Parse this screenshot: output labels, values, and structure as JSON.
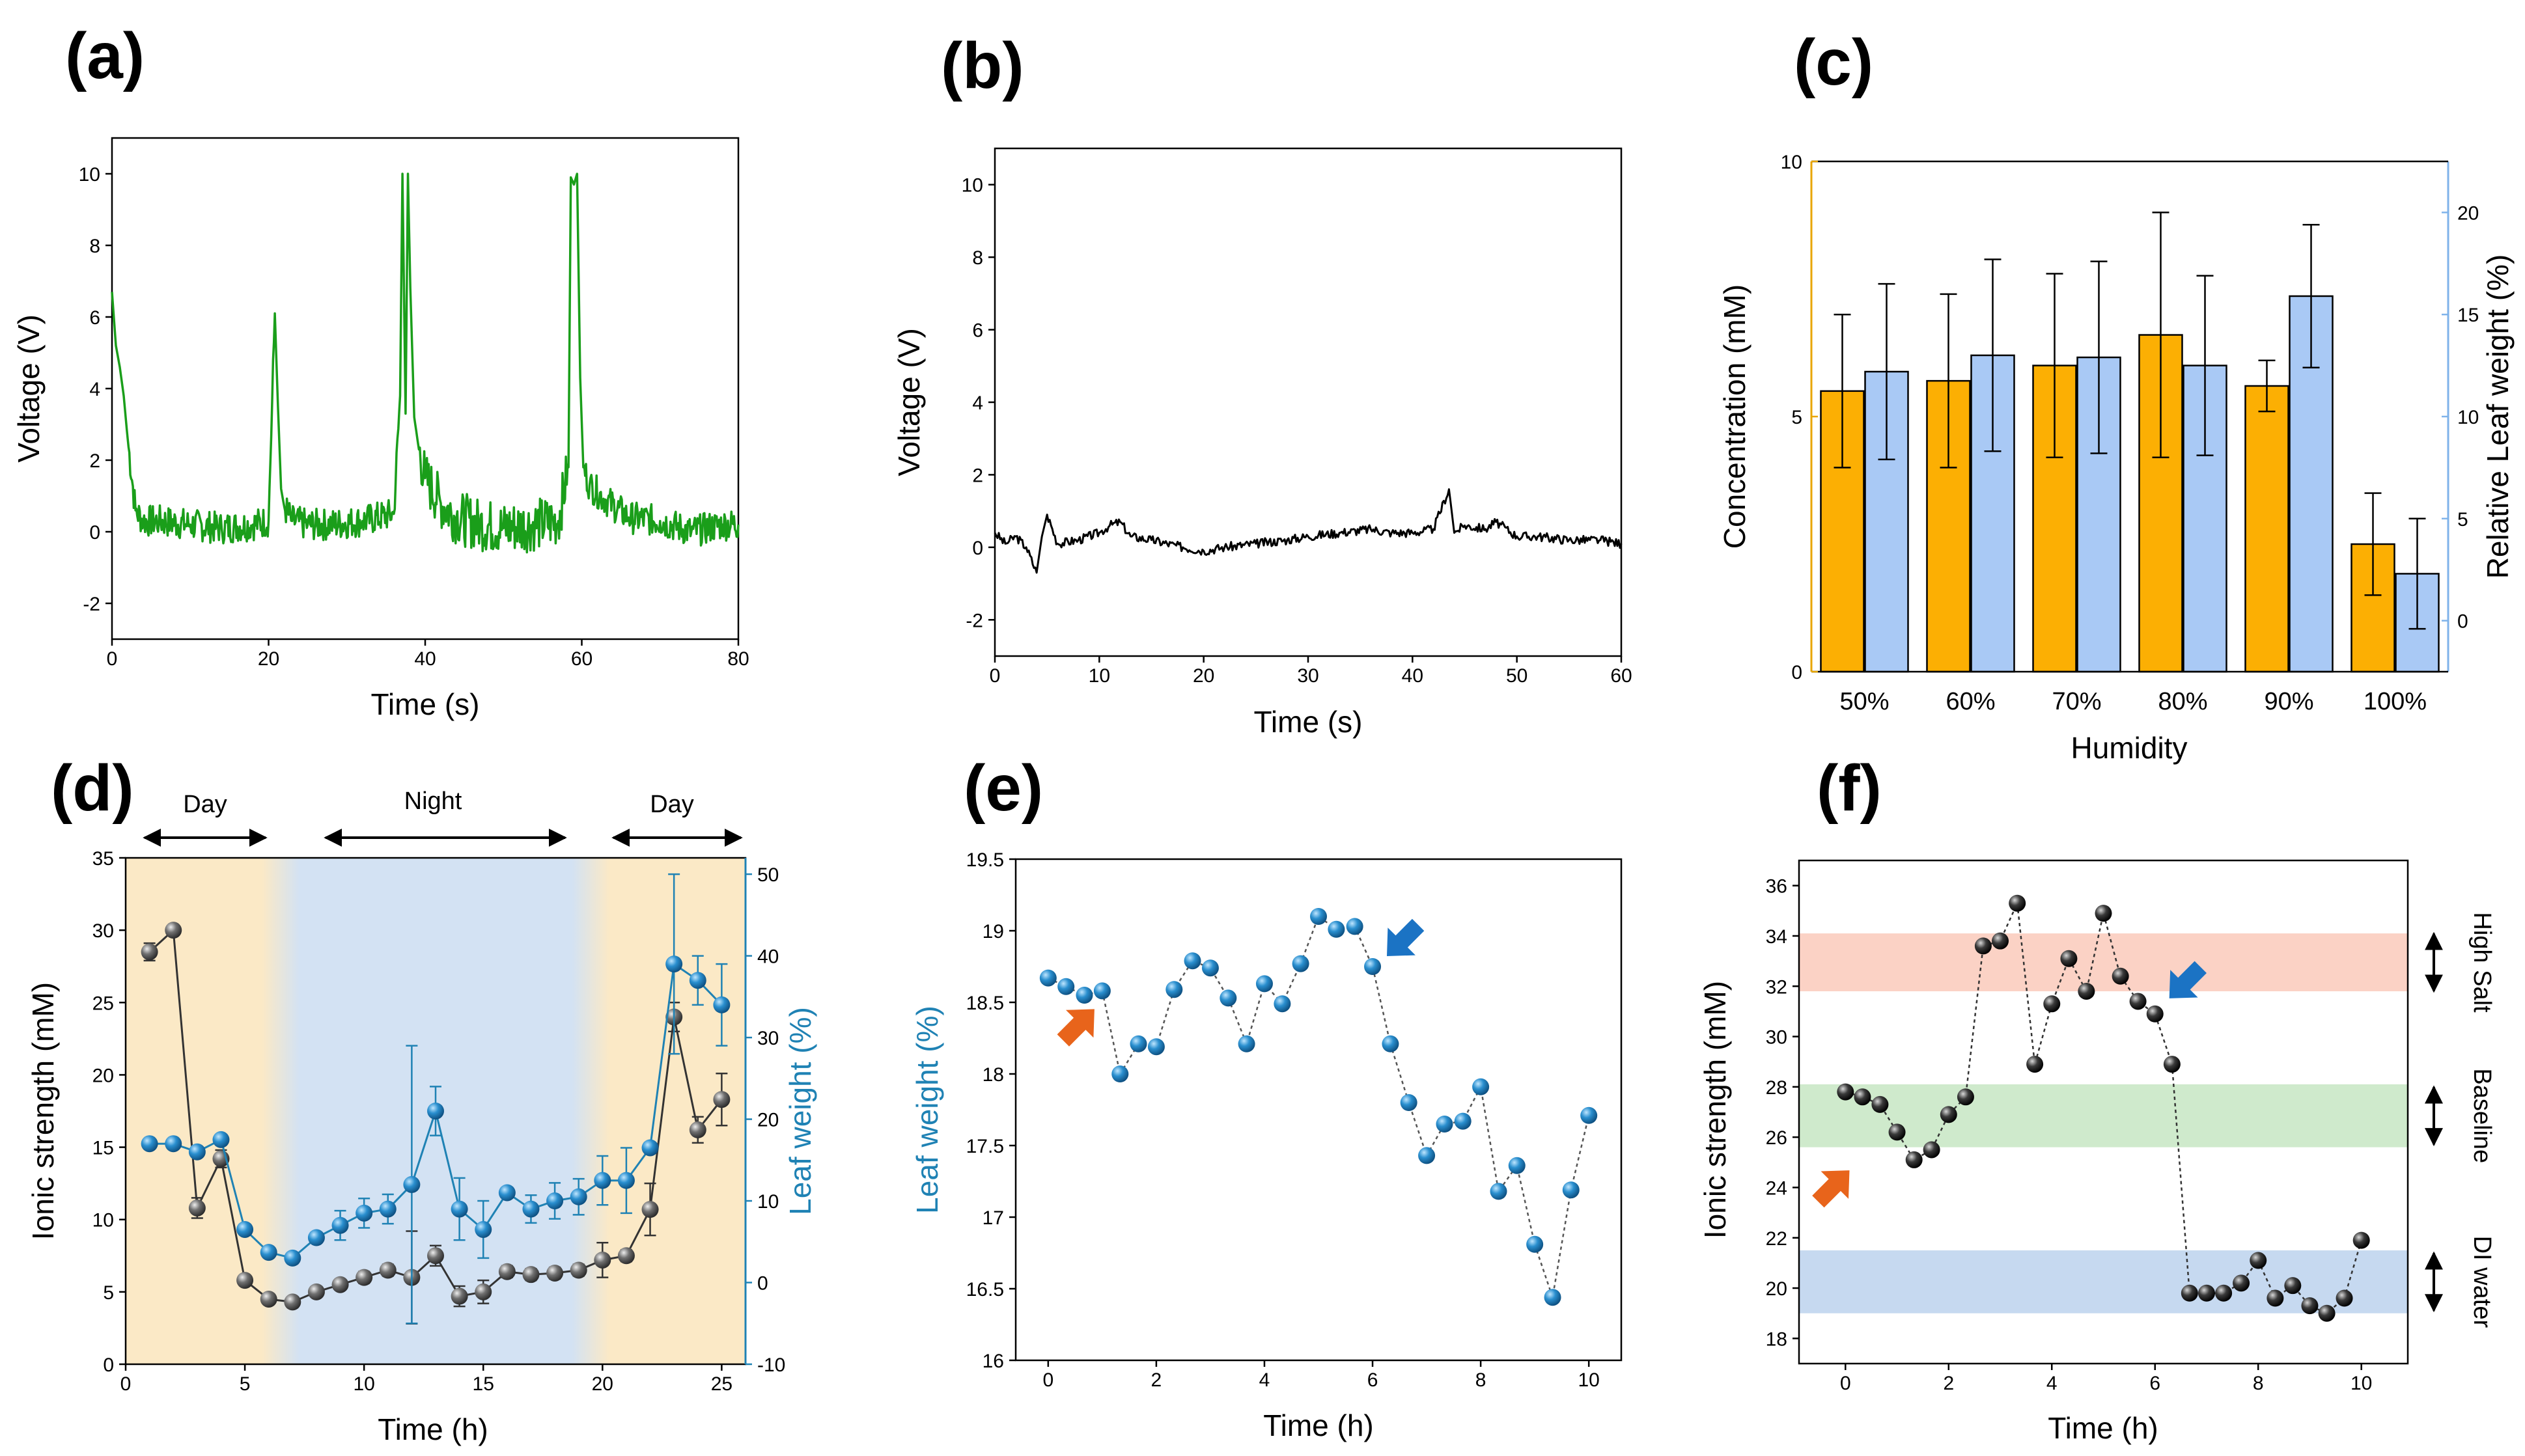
{
  "chart_data": [
    {
      "panel": "(a)",
      "type": "line",
      "xlabel": "Time (s)",
      "ylabel": "Voltage (V)",
      "xlim": [
        0,
        80
      ],
      "ylim": [
        -3,
        11
      ],
      "xticks": [
        0,
        20,
        40,
        60,
        80
      ],
      "yticks": [
        -2,
        0,
        2,
        4,
        6,
        8,
        10
      ],
      "series": [
        {
          "name": "voltage",
          "color": "#1a9e1a",
          "x": [
            0,
            0.5,
            1,
            1.5,
            2,
            3,
            4,
            6,
            10,
            14,
            18,
            20,
            20.8,
            21.2,
            21.6,
            22,
            23,
            25,
            28,
            32,
            36,
            36.8,
            37.1,
            37.5,
            37.8,
            38.1,
            38.6,
            39.2,
            40,
            42,
            44,
            47,
            50,
            54,
            57,
            58.3,
            58.6,
            59,
            59.4,
            59.8,
            60.2,
            61,
            63,
            66,
            70,
            74,
            78,
            80
          ],
          "y": [
            6.7,
            5.2,
            4.6,
            3.8,
            2.6,
            0.6,
            0.3,
            0.3,
            0.2,
            0.1,
            0.2,
            0.3,
            6.1,
            3.5,
            1.2,
            0.7,
            0.3,
            0.2,
            0.2,
            0.3,
            0.5,
            3.8,
            10.0,
            3.3,
            10.0,
            6.8,
            3.2,
            2.3,
            1.5,
            0.8,
            0.4,
            0.2,
            0.1,
            0.2,
            0.3,
            1.8,
            9.9,
            9.7,
            10.0,
            4.3,
            1.8,
            1.3,
            0.9,
            0.4,
            0.3,
            0.0,
            0.2,
            0.2
          ]
        }
      ]
    },
    {
      "panel": "(b)",
      "type": "line",
      "xlabel": "Time (s)",
      "ylabel": "Voltage (V)",
      "xlim": [
        0,
        60
      ],
      "ylim": [
        -3,
        11
      ],
      "xticks": [
        0,
        10,
        20,
        30,
        40,
        50,
        60
      ],
      "yticks": [
        -2,
        0,
        2,
        4,
        6,
        8,
        10
      ],
      "series": [
        {
          "name": "voltage",
          "color": "#000000",
          "x": [
            0,
            1,
            2,
            3,
            4,
            4.5,
            5,
            6,
            8,
            10,
            11,
            12,
            13,
            15,
            18,
            20,
            22,
            25,
            28,
            30,
            33,
            36,
            38,
            40,
            42,
            43.5,
            44,
            45,
            47,
            48,
            50,
            52,
            55,
            58,
            60
          ],
          "y": [
            0.4,
            0.1,
            0.3,
            0.0,
            -0.7,
            0.3,
            0.9,
            0.1,
            0.2,
            0.4,
            0.6,
            0.7,
            0.3,
            0.2,
            0.0,
            -0.1,
            0.0,
            0.1,
            0.2,
            0.3,
            0.4,
            0.5,
            0.4,
            0.4,
            0.5,
            1.6,
            0.4,
            0.6,
            0.5,
            0.7,
            0.3,
            0.3,
            0.2,
            0.2,
            0.1
          ]
        }
      ]
    },
    {
      "panel": "(c)",
      "type": "bar",
      "xlabel": "Humidity",
      "ylabel": "Concentration (mM)",
      "ylabel2": "Relative Leaf weight (%)",
      "categories": [
        "50%",
        "60%",
        "70%",
        "80%",
        "90%",
        "100%"
      ],
      "ylim": [
        0,
        10
      ],
      "yticks": [
        0,
        5,
        10
      ],
      "ylim2": [
        -2.5,
        22.5
      ],
      "yticks2": [
        0,
        5,
        10,
        15,
        20
      ],
      "series": [
        {
          "name": "Concentration",
          "axis": "left",
          "color": "#fcaf03",
          "values": [
            5.5,
            5.7,
            6.0,
            6.6,
            5.6,
            2.5
          ],
          "errors": [
            1.5,
            1.7,
            1.8,
            2.4,
            0.5,
            1.0
          ]
        },
        {
          "name": "Relative Leaf weight",
          "axis": "right",
          "color": "#a9c9f5",
          "values": [
            12.2,
            13.0,
            12.9,
            12.5,
            15.9,
            2.3
          ],
          "errors": [
            4.3,
            4.7,
            4.7,
            4.4,
            3.5,
            2.7
          ]
        }
      ]
    },
    {
      "panel": "(d)",
      "type": "line",
      "xlabel": "Time (h)",
      "ylabel": "Ionic strength (mM)",
      "ylabel2": "Leaf weight (%)",
      "xlim": [
        0,
        26
      ],
      "ylim": [
        0,
        35
      ],
      "ylim2": [
        -10,
        52
      ],
      "xticks": [
        0,
        5,
        10,
        15,
        20,
        25
      ],
      "yticks": [
        0,
        5,
        10,
        15,
        20,
        25,
        30,
        35
      ],
      "yticks2": [
        -10,
        0,
        10,
        20,
        30,
        40,
        50
      ],
      "annotations": {
        "day1": "Day",
        "night": "Night",
        "day2": "Day"
      },
      "series": [
        {
          "name": "Ionic strength",
          "axis": "left",
          "color": "#555555",
          "x": [
            1,
            2,
            3,
            4,
            5,
            6,
            7,
            8,
            9,
            10,
            11,
            12,
            13,
            14,
            15,
            16,
            17,
            18,
            19,
            20,
            21,
            22,
            23,
            24,
            25
          ],
          "y": [
            28.5,
            30.0,
            10.8,
            14.2,
            5.8,
            4.5,
            4.3,
            5.0,
            5.5,
            6.0,
            6.5,
            6.0,
            7.5,
            4.7,
            5.0,
            6.4,
            6.2,
            6.3,
            6.5,
            7.2,
            7.5,
            10.7,
            24.0,
            16.2,
            18.3
          ],
          "errors": [
            0.6,
            0,
            0.7,
            0.6,
            0.3,
            0.3,
            0.3,
            0.3,
            0.3,
            0.4,
            0.4,
            3.2,
            0.7,
            0.7,
            0.8,
            0.4,
            0.4,
            0.4,
            0.4,
            1.2,
            0.4,
            1.8,
            1.0,
            0.9,
            1.8
          ]
        },
        {
          "name": "Leaf weight",
          "axis": "right",
          "color": "#1f82b4",
          "x": [
            1,
            2,
            3,
            4,
            5,
            6,
            7,
            8,
            9,
            10,
            11,
            12,
            13,
            14,
            15,
            16,
            17,
            18,
            19,
            20,
            21,
            22,
            23,
            24,
            25
          ],
          "y": [
            17.0,
            17.0,
            16.0,
            17.5,
            6.5,
            3.7,
            3.0,
            5.5,
            7.0,
            8.5,
            9.0,
            12.0,
            21.0,
            9.0,
            6.5,
            11.0,
            9.0,
            10.0,
            10.5,
            12.5,
            12.5,
            16.5,
            39.0,
            37.0,
            34.0
          ],
          "errors": [
            0,
            0,
            0,
            0,
            0,
            0,
            0,
            0,
            1.8,
            1.8,
            1.8,
            17,
            3.0,
            3.8,
            3.5,
            0,
            1.7,
            2.2,
            2.2,
            3.0,
            4.0,
            0,
            11,
            3.0,
            5.0
          ]
        }
      ]
    },
    {
      "panel": "(e)",
      "type": "scatter",
      "xlabel": "Time (h)",
      "ylabel": "Leaf weight (%)",
      "xlim": [
        -0.6,
        10.6
      ],
      "ylim": [
        16,
        19.5
      ],
      "xticks": [
        0,
        2,
        4,
        6,
        8,
        10
      ],
      "yticks": [
        16,
        16.5,
        17,
        17.5,
        18,
        18.5,
        19,
        19.5
      ],
      "series": [
        {
          "name": "Leaf weight",
          "color": "#1f82b4",
          "x": [
            0,
            0.33,
            0.67,
            1.0,
            1.33,
            1.67,
            2.0,
            2.33,
            2.67,
            3.0,
            3.33,
            3.67,
            4.0,
            4.33,
            4.67,
            5.0,
            5.33,
            5.67,
            6.0,
            6.33,
            6.67,
            7.0,
            7.33,
            7.67,
            8.0,
            8.33,
            8.67,
            9.0,
            9.33,
            9.67,
            10.0
          ],
          "y": [
            18.67,
            18.61,
            18.55,
            18.58,
            18.0,
            18.21,
            18.19,
            18.59,
            18.79,
            18.74,
            18.53,
            18.21,
            18.63,
            18.49,
            18.77,
            19.1,
            19.01,
            19.03,
            18.75,
            18.21,
            17.8,
            17.43,
            17.65,
            17.67,
            17.91,
            17.18,
            17.36,
            16.81,
            16.44,
            17.19,
            17.71
          ]
        }
      ],
      "arrows": {
        "orange_at": [
          1.0,
          18.58
        ],
        "blue_at": [
          6.0,
          18.75
        ]
      }
    },
    {
      "panel": "(f)",
      "type": "scatter",
      "xlabel": "Time (h)",
      "ylabel": "Ionic strength (mM)",
      "xlim": [
        -0.9,
        10.9
      ],
      "ylim": [
        17,
        37
      ],
      "xticks": [
        0,
        2,
        4,
        6,
        8,
        10
      ],
      "yticks": [
        18,
        20,
        22,
        24,
        26,
        28,
        30,
        32,
        34,
        36
      ],
      "bands": [
        {
          "label": "High Salt",
          "from": 31.8,
          "to": 34.1,
          "color": "#fbd2c5"
        },
        {
          "label": "Baseline",
          "from": 25.6,
          "to": 28.1,
          "color": "#cfeacc"
        },
        {
          "label": "DI water",
          "from": 19.0,
          "to": 21.5,
          "color": "#c6d9f0"
        }
      ],
      "series": [
        {
          "name": "Ionic strength",
          "color": "#000000",
          "x": [
            0,
            0.33,
            0.67,
            1.0,
            1.33,
            1.67,
            2.0,
            2.33,
            2.67,
            3.0,
            3.33,
            3.67,
            4.0,
            4.33,
            4.67,
            5.0,
            5.33,
            5.67,
            6.0,
            6.33,
            6.67,
            7.0,
            7.33,
            7.67,
            8.0,
            8.33,
            8.67,
            9.0,
            9.33,
            9.67,
            10.0
          ],
          "y": [
            27.8,
            27.6,
            27.3,
            26.2,
            25.1,
            25.5,
            26.9,
            27.6,
            33.6,
            33.8,
            35.3,
            28.9,
            31.3,
            33.1,
            31.8,
            34.9,
            32.4,
            31.4,
            30.9,
            28.9,
            19.8,
            19.8,
            19.8,
            20.2,
            21.1,
            19.6,
            20.1,
            19.3,
            19.0,
            19.6,
            21.9
          ]
        }
      ],
      "arrows": {
        "orange_at": [
          0.33,
          25.2
        ],
        "blue_at": [
          6.0,
          31.0
        ]
      }
    }
  ]
}
